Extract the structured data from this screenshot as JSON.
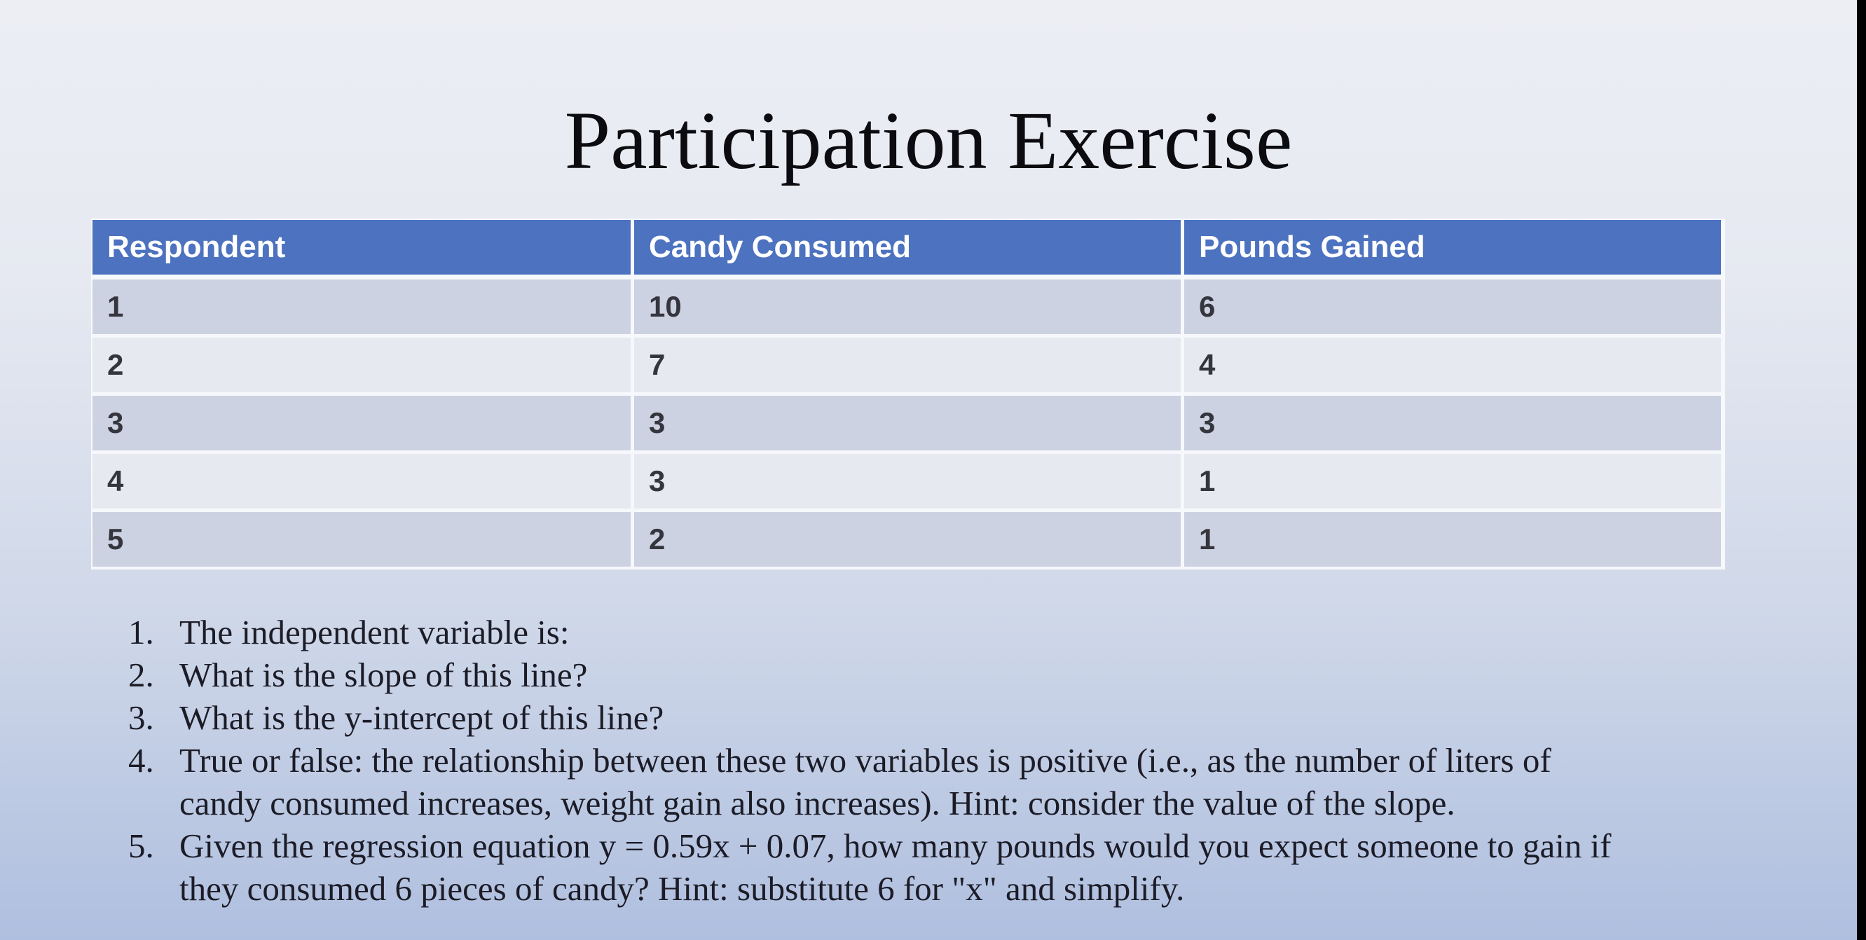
{
  "slide": {
    "title": "Participation Exercise",
    "colors": {
      "table_header_blue": "#4C72C0",
      "table_row_dark": "#CDD2E2",
      "table_row_light": "#E7E9F1",
      "background_top": "#ECEEF4",
      "background_bottom": "#AFBFDF",
      "right_edge_bar": "#000000"
    }
  },
  "table": {
    "columns": [
      "Respondent",
      "Candy Consumed",
      "Pounds Gained"
    ],
    "rows": [
      [
        "1",
        "10",
        "6"
      ],
      [
        "2",
        "7",
        "4"
      ],
      [
        "3",
        "3",
        "3"
      ],
      [
        "4",
        "3",
        "1"
      ],
      [
        "5",
        "2",
        "1"
      ]
    ]
  },
  "questions": {
    "items": [
      {
        "num": "1.",
        "lines": [
          "The independent variable is:"
        ]
      },
      {
        "num": "2.",
        "lines": [
          "What is the slope of this line?"
        ]
      },
      {
        "num": "3.",
        "lines": [
          "What is the y-intercept of this line?"
        ]
      },
      {
        "num": "4.",
        "lines": [
          "True or false: the relationship between these two variables is positive (i.e., as the number of liters of",
          "candy consumed increases, weight gain also increases). Hint: consider the value of the slope."
        ]
      },
      {
        "num": "5.",
        "lines": [
          "Given the regression equation y = 0.59x + 0.07, how many pounds would you expect someone to gain if",
          "they consumed 6 pieces of candy? Hint: substitute 6 for \"x\" and simplify."
        ]
      }
    ]
  }
}
